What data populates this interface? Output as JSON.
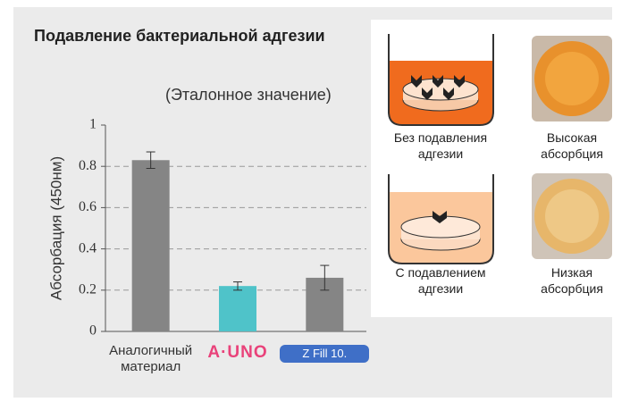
{
  "chart_data": {
    "type": "bar",
    "title": "Подавление бактериальной адгезии",
    "subtitle": "(Эталонное значение)",
    "y_label": "Абсорбация (450нм)",
    "categories": [
      "Аналогичный материал",
      "A·UNO",
      "Z Fill 10."
    ],
    "values": [
      0.83,
      0.22,
      0.26
    ],
    "errors": [
      0.04,
      0.02,
      0.06
    ],
    "colors": [
      "#858585",
      "#4fc3c9",
      "#858585"
    ],
    "ylim": [
      0,
      1
    ],
    "yticks": [
      0,
      0.2,
      0.4,
      0.6,
      0.8,
      1
    ],
    "grid": true
  },
  "panel": {
    "items": [
      {
        "label": "Без подавления адгезии",
        "result": "Высокая абсорбция"
      },
      {
        "label": "С подавлением адгезии",
        "result": "Низкая абсорбция"
      }
    ]
  }
}
